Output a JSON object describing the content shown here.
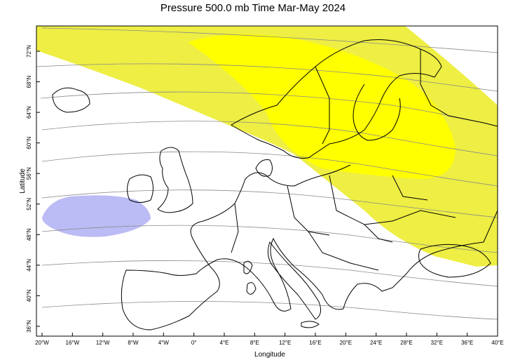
{
  "title": "Pressure 500.0 mb Time Mar-May 2024",
  "x_axis": {
    "label": "Longitude",
    "ticks": [
      "20°W",
      "16°W",
      "12°W",
      "8°W",
      "4°W",
      "0°",
      "4°E",
      "8°E",
      "12°E",
      "16°E",
      "20°E",
      "24°E",
      "28°E",
      "32°E",
      "36°E",
      "40°E"
    ]
  },
  "y_axis": {
    "label": "Latitude",
    "ticks": [
      "36°N",
      "40°N",
      "44°N",
      "48°N",
      "52°N",
      "56°N",
      "60°N",
      "64°N",
      "68°N",
      "72°N"
    ]
  },
  "chart_data": {
    "type": "map",
    "region": "Europe",
    "lon_range": [
      -20,
      40
    ],
    "lat_range": [
      34,
      76
    ],
    "variable": "Pressure 500.0 mb",
    "period": "Mar-May 2024",
    "colors": {
      "positive_anomaly_light": "#eeee44",
      "positive_anomaly_strong": "#ffff00",
      "negative_anomaly": "#bbbbf5",
      "contour": "#8a8a8a",
      "coastline": "#000000"
    }
  }
}
